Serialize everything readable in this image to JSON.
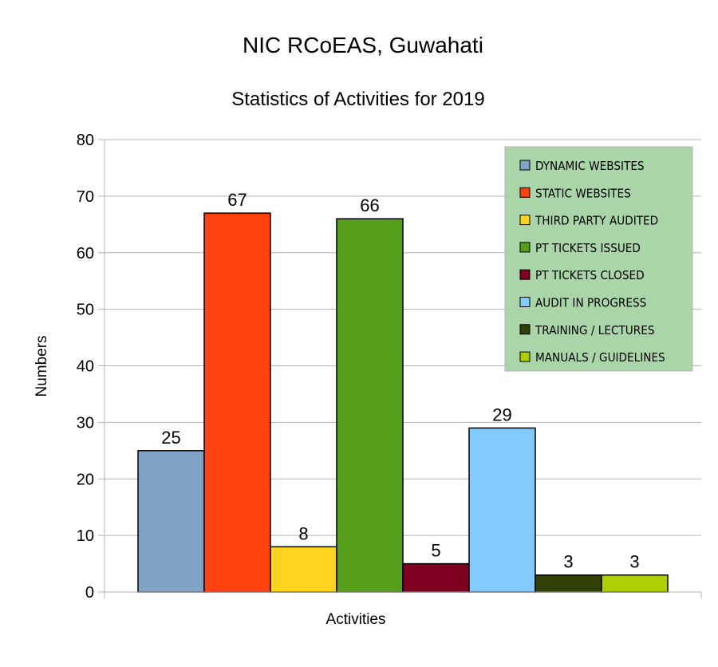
{
  "chart_data": {
    "type": "bar",
    "title": "NIC RCoEAS, Guwahati",
    "subtitle": "Statistics of Activities for 2019",
    "xlabel": "Activities",
    "ylabel": "Numbers",
    "ylim": [
      0,
      80
    ],
    "yticks": [
      "0",
      "10",
      "20",
      "30",
      "40",
      "50",
      "60",
      "70",
      "80"
    ],
    "grid": true,
    "legend_position": "top-right",
    "legend_background": "#a9d5a9",
    "series": [
      {
        "name": "DYNAMIC WEBSITES",
        "value": 25,
        "label": "25",
        "color": "#7fa2c5"
      },
      {
        "name": "STATIC WEBSITES",
        "value": 67,
        "label": "67",
        "color": "#ff420e"
      },
      {
        "name": "THIRD PARTY AUDITED",
        "value": 8,
        "label": "8",
        "color": "#ffd320"
      },
      {
        "name": "PT TICKETS ISSUED",
        "value": 66,
        "label": "66",
        "color": "#579d1c"
      },
      {
        "name": "PT TICKETS CLOSED",
        "value": 5,
        "label": "5",
        "color": "#7e0021"
      },
      {
        "name": "AUDIT IN PROGRESS",
        "value": 29,
        "label": "29",
        "color": "#83caff"
      },
      {
        "name": "TRAINING / LECTURES",
        "value": 3,
        "label": "3",
        "color": "#314004"
      },
      {
        "name": "MANUALS / GUIDELINES",
        "value": 3,
        "label": "3",
        "color": "#aecf00"
      }
    ]
  }
}
